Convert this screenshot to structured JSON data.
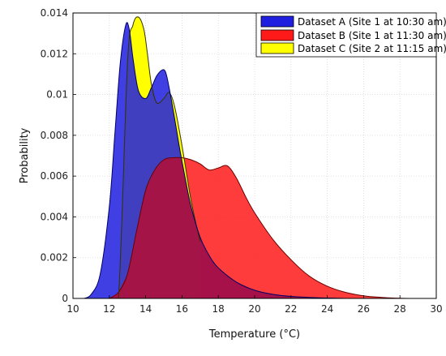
{
  "chart_data": {
    "type": "area",
    "title": "",
    "xlabel": "Temperature (°C)",
    "ylabel": "Probability",
    "xlim": [
      10,
      30
    ],
    "ylim": [
      0,
      0.014
    ],
    "grid": true,
    "legend_position": "top-right",
    "x_ticks": [
      "10",
      "12",
      "14",
      "16",
      "18",
      "20",
      "22",
      "24",
      "26",
      "28",
      "30"
    ],
    "y_ticks": [
      "0",
      "0.002",
      "0.004",
      "0.006",
      "0.008",
      "0.01",
      "0.012",
      "0.014"
    ],
    "series": [
      {
        "name": "Dataset A (Site 1 at 10:30 am)",
        "color": "#1f1fe0",
        "x": [
          10.6,
          11.0,
          11.5,
          12.0,
          12.3,
          12.6,
          12.9,
          13.1,
          13.3,
          13.6,
          14.0,
          14.3,
          14.6,
          14.9,
          15.1,
          15.3,
          15.6,
          15.9,
          16.2,
          16.5,
          17.0,
          17.5,
          18.0,
          19.0,
          20.0,
          21.0,
          22.0,
          23.0,
          24.0,
          25.0,
          26.0
        ],
        "y": [
          0.0,
          0.0002,
          0.0012,
          0.0045,
          0.008,
          0.0115,
          0.0134,
          0.0132,
          0.0118,
          0.0102,
          0.0098,
          0.0103,
          0.0109,
          0.0112,
          0.0111,
          0.0103,
          0.0088,
          0.0072,
          0.0058,
          0.0045,
          0.003,
          0.0021,
          0.0015,
          0.0008,
          0.0004,
          0.0002,
          0.0001,
          5e-05,
          2e-05,
          0.0,
          0.0
        ]
      },
      {
        "name": "Dataset B (Site 1 at 11:30 am)",
        "color": "#ff1a1a",
        "x": [
          12.0,
          12.5,
          13.0,
          13.5,
          14.0,
          14.5,
          15.0,
          15.5,
          16.0,
          16.5,
          17.0,
          17.5,
          18.0,
          18.5,
          19.0,
          19.5,
          20.0,
          21.0,
          22.0,
          23.0,
          24.0,
          25.0,
          26.0,
          27.0,
          28.0,
          29.0
        ],
        "y": [
          0.0,
          0.0003,
          0.0012,
          0.0033,
          0.0053,
          0.0063,
          0.0068,
          0.0069,
          0.0069,
          0.0068,
          0.0066,
          0.0063,
          0.0064,
          0.0065,
          0.0059,
          0.005,
          0.0042,
          0.0029,
          0.0019,
          0.0011,
          0.0006,
          0.0003,
          0.00013,
          5e-05,
          1e-05,
          0.0
        ]
      },
      {
        "name": "Dataset C (Site 2 at 11:15 am)",
        "color": "#ffff00",
        "x": [
          12.0,
          12.5,
          13.0,
          13.3,
          13.6,
          13.9,
          14.1,
          14.3,
          14.6,
          15.0,
          15.3,
          15.6,
          16.0,
          16.5,
          17.0
        ],
        "y": [
          0.0,
          0.0,
          0.0115,
          0.0134,
          0.0138,
          0.0132,
          0.012,
          0.0106,
          0.0096,
          0.0098,
          0.0101,
          0.0094,
          0.0075,
          0.0048,
          0.0028
        ]
      }
    ]
  }
}
